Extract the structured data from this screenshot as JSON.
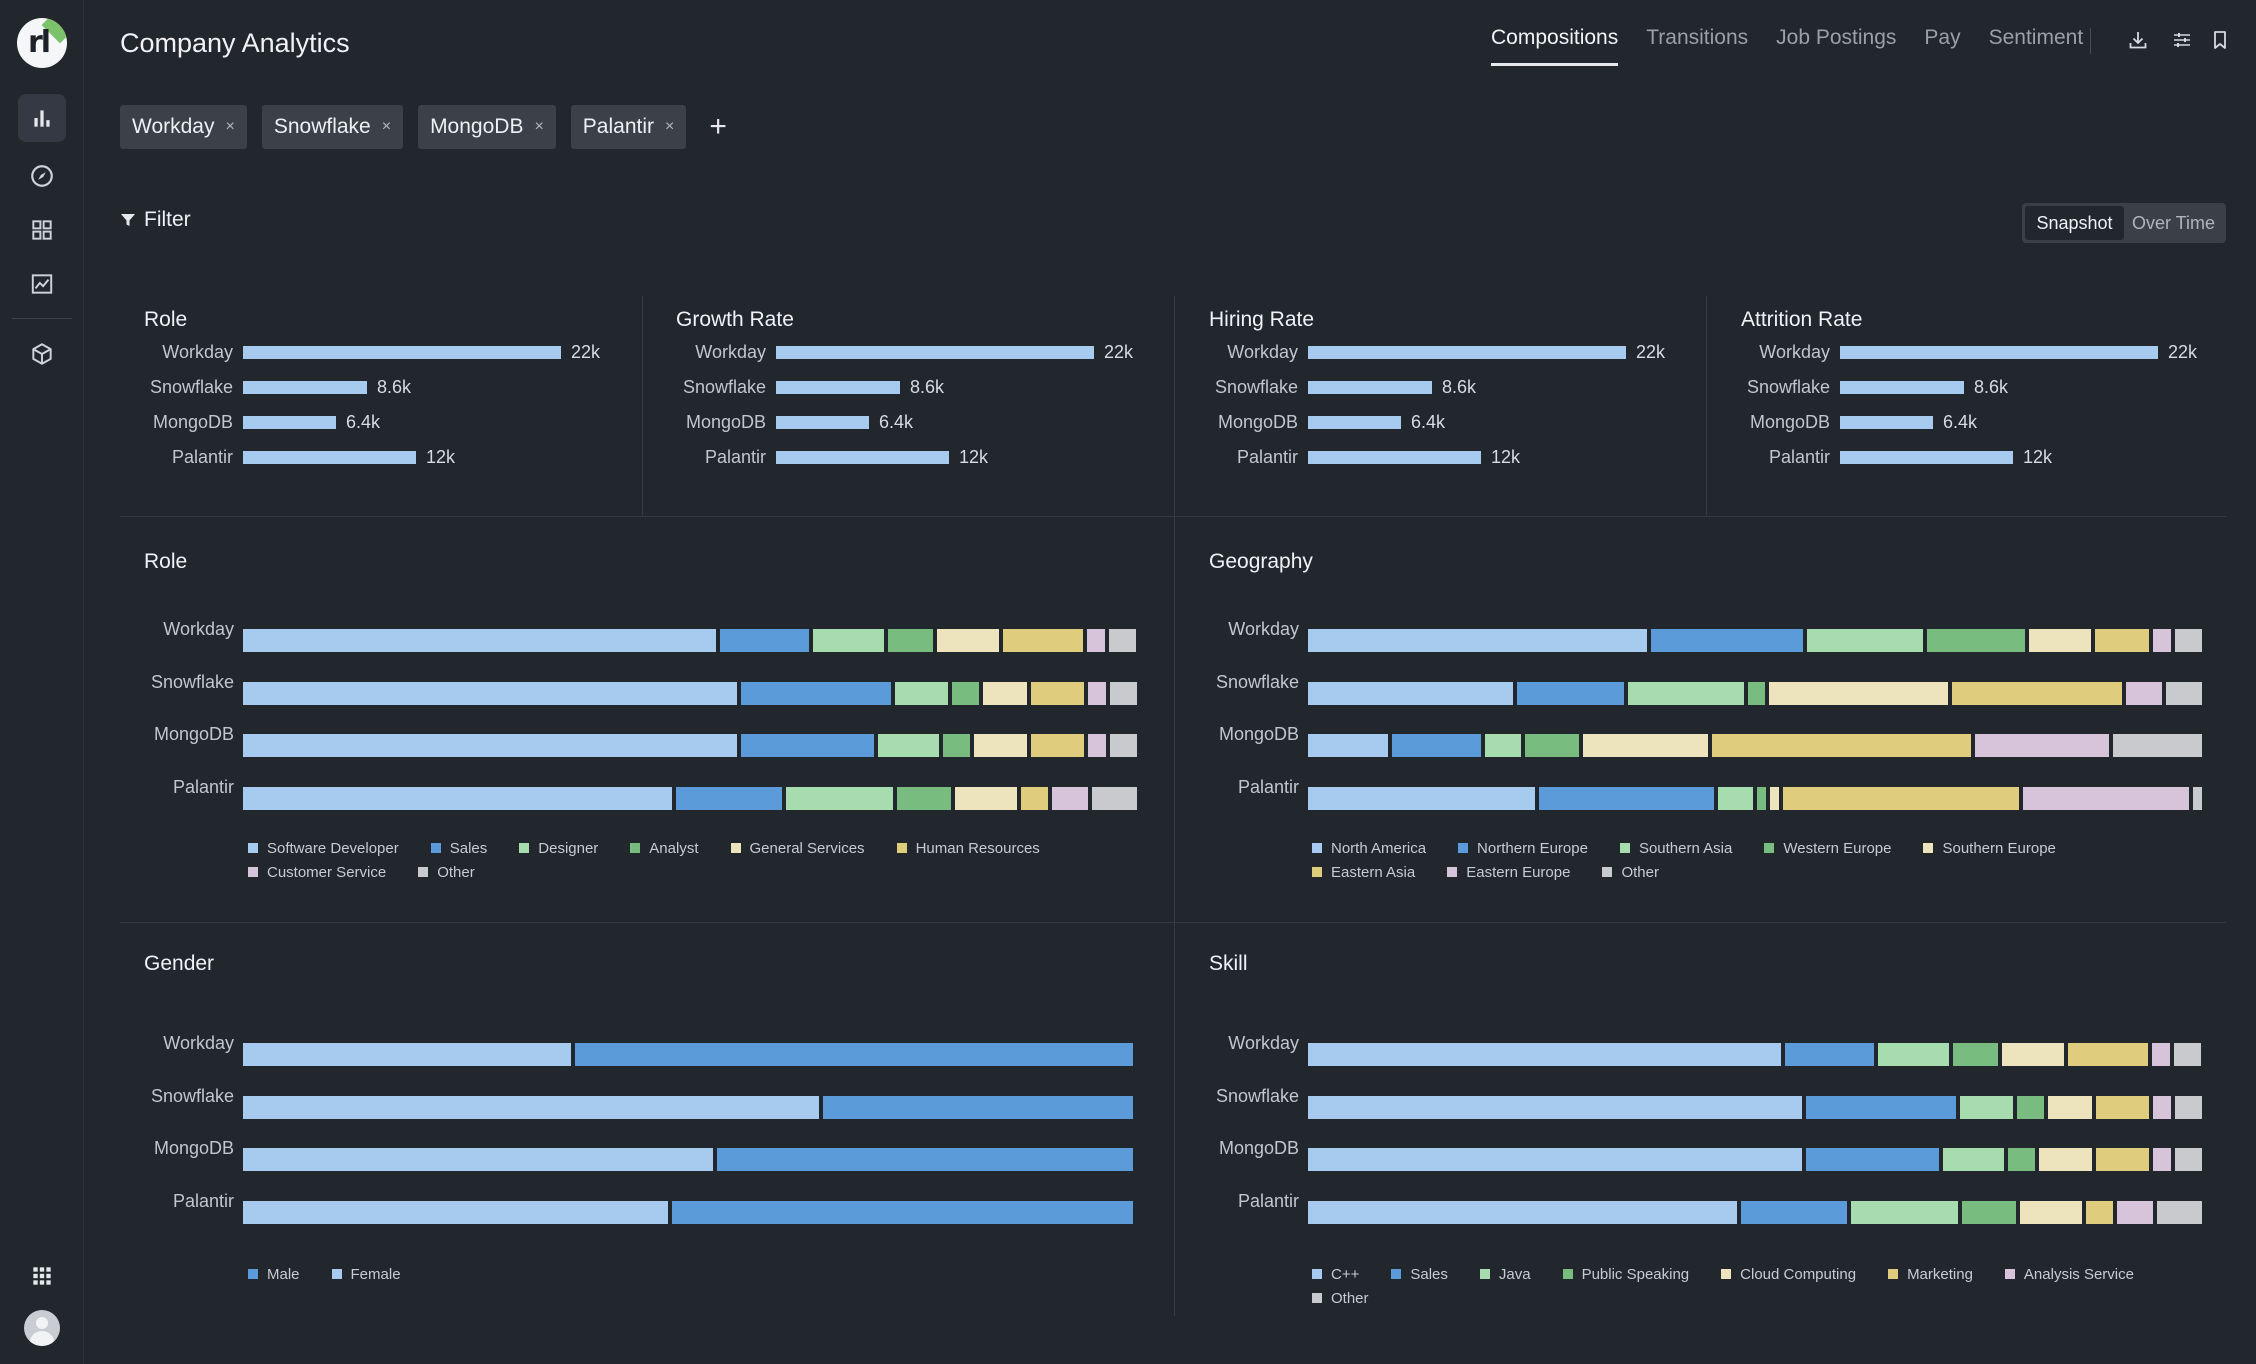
{
  "app": {
    "title": "Company Analytics"
  },
  "tabs": [
    {
      "label": "Compositions",
      "active": true
    },
    {
      "label": "Transitions",
      "active": false
    },
    {
      "label": "Job Postings",
      "active": false
    },
    {
      "label": "Pay",
      "active": false
    },
    {
      "label": "Sentiment",
      "active": false
    }
  ],
  "header_icons": [
    "download-icon",
    "sliders-icon",
    "bookmark-icon"
  ],
  "sidebar": {
    "items": [
      "bar-chart-icon",
      "compass-icon",
      "grid-icon",
      "line-chart-icon",
      "cube-icon"
    ],
    "bottom": [
      "apps-icon",
      "avatar"
    ]
  },
  "chips": [
    {
      "label": "Workday",
      "remove": "×"
    },
    {
      "label": "Snowflake",
      "remove": "×"
    },
    {
      "label": "MongoDB",
      "remove": "×"
    },
    {
      "label": "Palantir",
      "remove": "×"
    }
  ],
  "add_chip": "+",
  "filter": {
    "label": "Filter"
  },
  "view_toggle": {
    "options": [
      "Snapshot",
      "Over Time"
    ],
    "selected": "Snapshot"
  },
  "colors": {
    "bar": "#a6cbef",
    "series": [
      "#a6cbef",
      "#5b9bd9",
      "#a7dcae",
      "#78bc80",
      "#ede3bd",
      "#dfcc7c",
      "#d8c4da",
      "#c8cacd"
    ]
  },
  "summary_panels": [
    {
      "title": "Role",
      "rows": [
        {
          "company": "Workday",
          "value": 22000,
          "label": "22k"
        },
        {
          "company": "Snowflake",
          "value": 8600,
          "label": "8.6k"
        },
        {
          "company": "MongoDB",
          "value": 6400,
          "label": "6.4k"
        },
        {
          "company": "Palantir",
          "value": 12000,
          "label": "12k"
        }
      ]
    },
    {
      "title": "Growth Rate",
      "rows": [
        {
          "company": "Workday",
          "value": 22000,
          "label": "22k"
        },
        {
          "company": "Snowflake",
          "value": 8600,
          "label": "8.6k"
        },
        {
          "company": "MongoDB",
          "value": 6400,
          "label": "6.4k"
        },
        {
          "company": "Palantir",
          "value": 12000,
          "label": "12k"
        }
      ]
    },
    {
      "title": "Hiring Rate",
      "rows": [
        {
          "company": "Workday",
          "value": 22000,
          "label": "22k"
        },
        {
          "company": "Snowflake",
          "value": 8600,
          "label": "8.6k"
        },
        {
          "company": "MongoDB",
          "value": 6400,
          "label": "6.4k"
        },
        {
          "company": "Palantir",
          "value": 12000,
          "label": "12k"
        }
      ]
    },
    {
      "title": "Attrition Rate",
      "rows": [
        {
          "company": "Workday",
          "value": 22000,
          "label": "22k"
        },
        {
          "company": "Snowflake",
          "value": 8600,
          "label": "8.6k"
        },
        {
          "company": "MongoDB",
          "value": 6400,
          "label": "6.4k"
        },
        {
          "company": "Palantir",
          "value": 12000,
          "label": "12k"
        }
      ]
    }
  ],
  "stacked_panels": [
    {
      "title": "Role",
      "legend": [
        "Software Developer",
        "Sales",
        "Designer",
        "Analyst",
        "General Services",
        "Human Resources",
        "Customer Service",
        "Other"
      ],
      "rows": [
        {
          "company": "Workday",
          "shares": [
            0.53,
            0.1,
            0.08,
            0.05,
            0.07,
            0.09,
            0.02,
            0.03
          ]
        },
        {
          "company": "Snowflake",
          "shares": [
            0.56,
            0.17,
            0.06,
            0.03,
            0.05,
            0.06,
            0.02,
            0.03
          ]
        },
        {
          "company": "MongoDB",
          "shares": [
            0.56,
            0.15,
            0.07,
            0.03,
            0.06,
            0.06,
            0.02,
            0.03
          ]
        },
        {
          "company": "Palantir",
          "shares": [
            0.48,
            0.12,
            0.12,
            0.06,
            0.07,
            0.03,
            0.04,
            0.05
          ]
        }
      ]
    },
    {
      "title": "Geography",
      "legend": [
        "North America",
        "Northern Europe",
        "Southern Asia",
        "Western Europe",
        "Southern Europe",
        "Eastern Asia",
        "Eastern Europe",
        "Other"
      ],
      "rows": [
        {
          "company": "Workday",
          "shares": [
            0.38,
            0.17,
            0.13,
            0.11,
            0.07,
            0.06,
            0.02,
            0.03
          ]
        },
        {
          "company": "Snowflake",
          "shares": [
            0.23,
            0.12,
            0.13,
            0.02,
            0.2,
            0.19,
            0.04,
            0.04
          ]
        },
        {
          "company": "MongoDB",
          "shares": [
            0.09,
            0.1,
            0.04,
            0.06,
            0.14,
            0.29,
            0.15,
            0.1
          ]
        },
        {
          "company": "Palantir",
          "shares": [
            0.26,
            0.2,
            0.04,
            0.01,
            0.01,
            0.27,
            0.19,
            0.01
          ]
        }
      ]
    },
    {
      "title": "Gender",
      "legend": [
        "Male",
        "Female"
      ],
      "legend_colors": [
        "#5b9bd9",
        "#a6cbef"
      ],
      "rows": [
        {
          "company": "Workday",
          "shares": [
            0.37,
            0.63
          ]
        },
        {
          "company": "Snowflake",
          "shares": [
            0.65,
            0.35
          ]
        },
        {
          "company": "MongoDB",
          "shares": [
            0.53,
            0.47
          ]
        },
        {
          "company": "Palantir",
          "shares": [
            0.48,
            0.52
          ]
        }
      ]
    },
    {
      "title": "Skill",
      "legend": [
        "C++",
        "Sales",
        "Java",
        "Public Speaking",
        "Cloud Computing",
        "Marketing",
        "Analysis Service",
        "Other"
      ],
      "rows": [
        {
          "company": "Workday",
          "shares": [
            0.53,
            0.1,
            0.08,
            0.05,
            0.07,
            0.09,
            0.02,
            0.03
          ]
        },
        {
          "company": "Snowflake",
          "shares": [
            0.56,
            0.17,
            0.06,
            0.03,
            0.05,
            0.06,
            0.02,
            0.03
          ]
        },
        {
          "company": "MongoDB",
          "shares": [
            0.56,
            0.15,
            0.07,
            0.03,
            0.06,
            0.06,
            0.02,
            0.03
          ]
        },
        {
          "company": "Palantir",
          "shares": [
            0.48,
            0.12,
            0.12,
            0.06,
            0.07,
            0.03,
            0.04,
            0.05
          ]
        }
      ]
    }
  ]
}
